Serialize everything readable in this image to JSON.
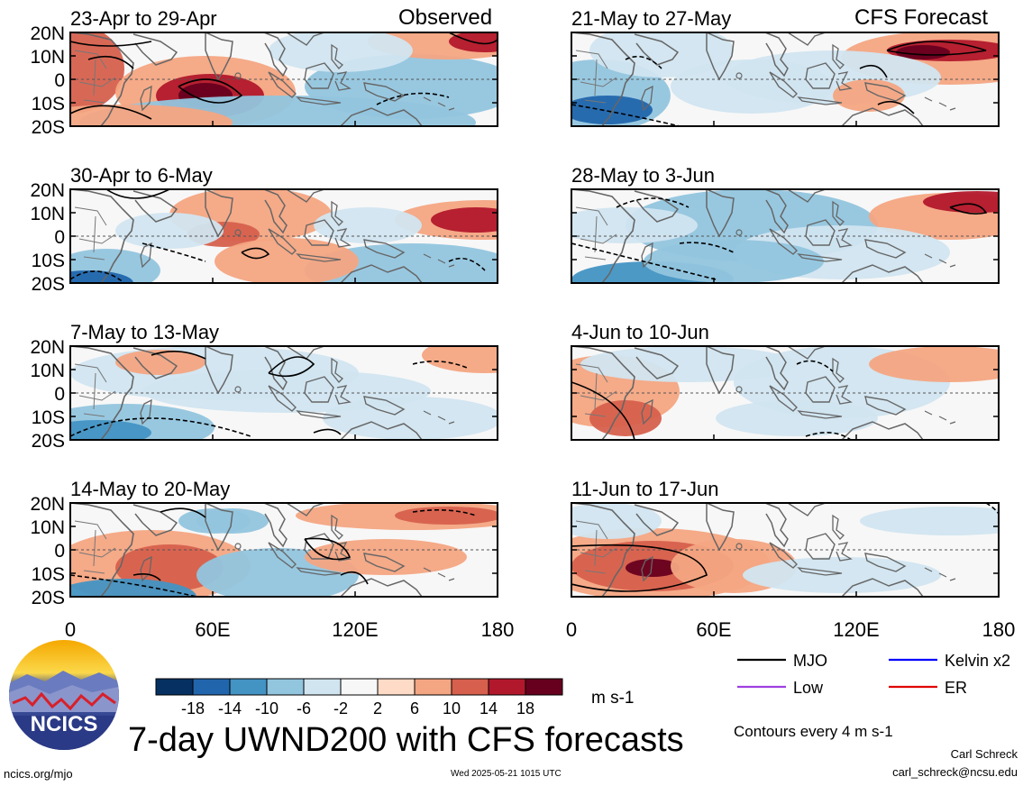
{
  "panels": {
    "observed_header": "Observed",
    "forecast_header": "CFS Forecast",
    "left": [
      {
        "title": "23-Apr to 29-Apr"
      },
      {
        "title": "30-Apr to 6-May"
      },
      {
        "title": "7-May to 13-May"
      },
      {
        "title": "14-May to 20-May"
      }
    ],
    "right": [
      {
        "title": "21-May to 27-May"
      },
      {
        "title": "28-May to 3-Jun"
      },
      {
        "title": "4-Jun to 10-Jun"
      },
      {
        "title": "11-Jun to 17-Jun"
      }
    ],
    "lat_labels": [
      "20N",
      "10N",
      "0",
      "10S",
      "20S"
    ],
    "lon_labels": [
      "0",
      "60E",
      "120E",
      "180"
    ]
  },
  "colorbar": {
    "labels": [
      "-18",
      "-14",
      "-10",
      "-6",
      "-2",
      "2",
      "6",
      "10",
      "14",
      "18"
    ],
    "colors": [
      "#053061",
      "#2166ac",
      "#4393c3",
      "#92c5de",
      "#d1e5f0",
      "#f7f7f7",
      "#fddbc7",
      "#f4a582",
      "#d6604d",
      "#b2182b",
      "#67001f"
    ],
    "units": "m s-1"
  },
  "legend": {
    "items": [
      {
        "label": "MJO",
        "color": "#000000"
      },
      {
        "label": "Kelvin x2",
        "color": "#0000ff"
      },
      {
        "label": "Low",
        "color": "#a040e0"
      },
      {
        "label": "ER",
        "color": "#e00000"
      }
    ],
    "contour_note": "Contours every 4 m s-1"
  },
  "footer": {
    "logo_text": "NCICS",
    "main_title": "7-day UWND200 with CFS forecasts",
    "url": "ncics.org/mjo",
    "timestamp": "Wed 2025-05-21 1015 UTC",
    "author": "Carl Schreck",
    "email": "carl_schreck@ncsu.edu"
  }
}
